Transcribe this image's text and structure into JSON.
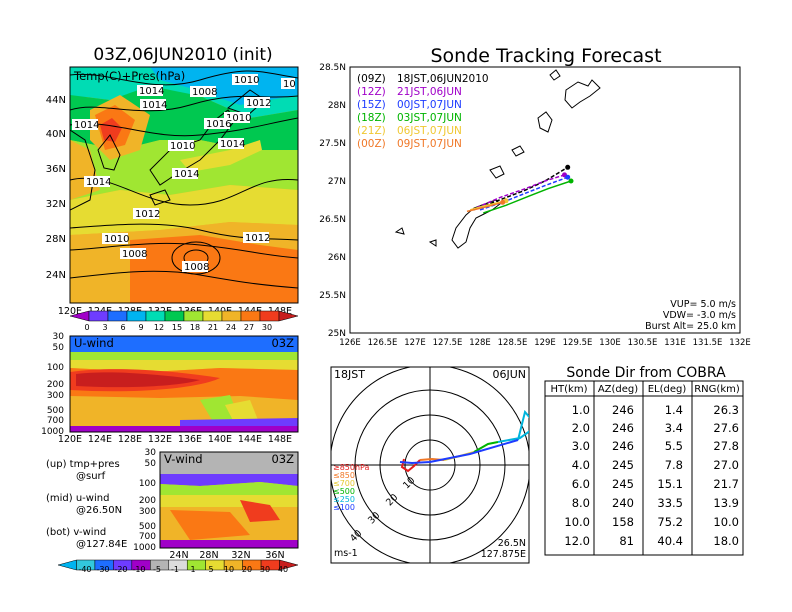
{
  "left_panel": {
    "title": "03Z,06JUN2010 (init)",
    "map_label": "Temp(C)+Pres(hPa)",
    "lat_ticks": [
      "44N",
      "40N",
      "36N",
      "32N",
      "28N",
      "24N"
    ],
    "lon_ticks": [
      "120E",
      "124E",
      "128E",
      "132E",
      "136E",
      "140E",
      "144E",
      "148E"
    ],
    "pressure_labels": [
      "1014",
      "1014",
      "1008",
      "1010",
      "1012",
      "1014",
      "1016",
      "1010",
      "1014",
      "1014",
      "1014",
      "1012",
      "1012",
      "1010",
      "1008",
      "1008",
      "1010",
      "10",
      "1014",
      "1016"
    ],
    "colorbar_ticks": [
      "0",
      "3",
      "6",
      "9",
      "12",
      "15",
      "18",
      "21",
      "24",
      "27",
      "30"
    ],
    "colorbar_colors": [
      "#a000c8",
      "#6e3cff",
      "#1e6eff",
      "#00b4f0",
      "#00dcb4",
      "#00c850",
      "#a0e632",
      "#e6dc32",
      "#f0b428",
      "#fa7814",
      "#f03c1e",
      "#c81e1e"
    ]
  },
  "u_panel": {
    "label": "U-wind",
    "time": "03Z",
    "y_ticks": [
      "30",
      "50",
      "100",
      "200",
      "300",
      "500",
      "700",
      "1000"
    ],
    "x_ticks": [
      "120E",
      "124E",
      "128E",
      "132E",
      "136E",
      "140E",
      "144E",
      "148E"
    ]
  },
  "v_panel": {
    "label": "V-wind",
    "time": "03Z",
    "y_ticks": [
      "30",
      "50",
      "100",
      "200",
      "300",
      "500",
      "700",
      "1000"
    ],
    "x_ticks": [
      "24N",
      "28N",
      "32N",
      "36N"
    ]
  },
  "notes": [
    {
      "a": "(up) tmp+pres",
      "b": "@surf"
    },
    {
      "a": "(mid) u-wind",
      "b": "@26.50N"
    },
    {
      "a": "(bot) v-wind",
      "b": "@127.84E"
    }
  ],
  "wind_colorbar": {
    "ticks": [
      "-40",
      "-30",
      "-20",
      "-10",
      "-5",
      "-1",
      "1",
      "5",
      "10",
      "20",
      "30",
      "40"
    ],
    "colors": [
      "#00b4f0",
      "#32c8dc",
      "#1e6eff",
      "#6e3cff",
      "#a000c8",
      "#b4b4b4",
      "#dcdcdc",
      "#a0e632",
      "#e6dc32",
      "#f0b428",
      "#fa7814",
      "#f03c1e",
      "#c81e1e"
    ]
  },
  "tracking": {
    "title": "Sonde Tracking Forecast",
    "legend": [
      {
        "code": "(09Z)",
        "text": "18JST,06JUN2010",
        "color": "#000000"
      },
      {
        "code": "(12Z)",
        "text": "21JST,06JUN",
        "color": "#a000c8"
      },
      {
        "code": "(15Z)",
        "text": "00JST,07JUN",
        "color": "#1e3cff"
      },
      {
        "code": "(18Z)",
        "text": "03JST,07JUN",
        "color": "#00b400"
      },
      {
        "code": "(21Z)",
        "text": "06JST,07JUN",
        "color": "#f0c832"
      },
      {
        "code": "(00Z)",
        "text": "09JST,07JUN",
        "color": "#f07828"
      }
    ],
    "lat_ticks": [
      "28.5N",
      "28N",
      "27.5N",
      "27N",
      "26.5N",
      "26N",
      "25.5N",
      "25N"
    ],
    "lon_ticks": [
      "126E",
      "126.5E",
      "127E",
      "127.5E",
      "128E",
      "128.5E",
      "129E",
      "129.5E",
      "130E",
      "130.5E",
      "131E",
      "131.5E",
      "132E"
    ],
    "params": [
      "VUP=  5.0 m/s",
      "VDW= -3.0 m/s",
      "Burst Alt= 25.0 km"
    ]
  },
  "polar": {
    "time_label": "18JST",
    "date_label": "06JUN",
    "ring_labels": [
      "10",
      "20",
      "30",
      "40"
    ],
    "levels": [
      {
        "label": "≥850hPa",
        "color": "#e61e1e"
      },
      {
        "label": "≤850",
        "color": "#f07828"
      },
      {
        "label": "≤700",
        "color": "#e6c832"
      },
      {
        "label": "≤500",
        "color": "#00b400"
      },
      {
        "label": "≤250",
        "color": "#00b4dc"
      },
      {
        "label": "≤100",
        "color": "#1e3cff"
      }
    ],
    "unit": "ms-1",
    "loc_lat": "26.5N",
    "loc_lon": "127.875E"
  },
  "cobra": {
    "title": "Sonde Dir from COBRA",
    "headers": [
      "HT(km)",
      "AZ(deg)",
      "EL(deg)",
      "RNG(km)"
    ],
    "rows": [
      [
        "1.0",
        "246",
        "1.4",
        "26.3"
      ],
      [
        "2.0",
        "246",
        "3.4",
        "27.6"
      ],
      [
        "3.0",
        "246",
        "5.5",
        "27.8"
      ],
      [
        "4.0",
        "245",
        "7.8",
        "27.0"
      ],
      [
        "6.0",
        "245",
        "15.1",
        "21.7"
      ],
      [
        "8.0",
        "240",
        "33.5",
        "13.9"
      ],
      [
        "10.0",
        "158",
        "75.2",
        "10.0"
      ],
      [
        "12.0",
        "81",
        "40.4",
        "18.0"
      ]
    ]
  },
  "chart_data": {
    "type": "line",
    "title": "Sonde Tracking Forecast",
    "xlabel": "",
    "ylabel": "",
    "xlim": [
      126,
      132
    ],
    "ylim": [
      25,
      28.5
    ],
    "series": [
      {
        "name": "(09Z) 18JST,06JUN2010",
        "x": [
          127.9,
          128.3,
          128.7,
          129.0,
          129.35
        ],
        "y": [
          26.62,
          26.75,
          26.88,
          27.0,
          27.18
        ]
      },
      {
        "name": "(12Z) 21JST,06JUN",
        "x": [
          127.95,
          128.3,
          128.7,
          129.0,
          129.3
        ],
        "y": [
          26.65,
          26.78,
          26.9,
          27.0,
          27.08
        ]
      },
      {
        "name": "(15Z) 00JST,07JUN",
        "x": [
          128.0,
          128.35,
          128.7,
          129.0,
          129.35
        ],
        "y": [
          26.62,
          26.72,
          26.84,
          26.94,
          27.05
        ]
      },
      {
        "name": "(18Z) 03JST,07JUN",
        "x": [
          128.05,
          128.4,
          128.75,
          129.05,
          129.4
        ],
        "y": [
          26.58,
          26.68,
          26.8,
          26.9,
          27.0
        ]
      },
      {
        "name": "(21Z) 06JST,07JUN",
        "x": [
          127.85,
          128.1,
          128.4
        ],
        "y": [
          26.62,
          26.68,
          26.74
        ]
      },
      {
        "name": "(00Z) 09JST,07JUN",
        "x": [
          127.8,
          128.1,
          128.35
        ],
        "y": [
          26.6,
          26.66,
          26.72
        ]
      }
    ]
  }
}
